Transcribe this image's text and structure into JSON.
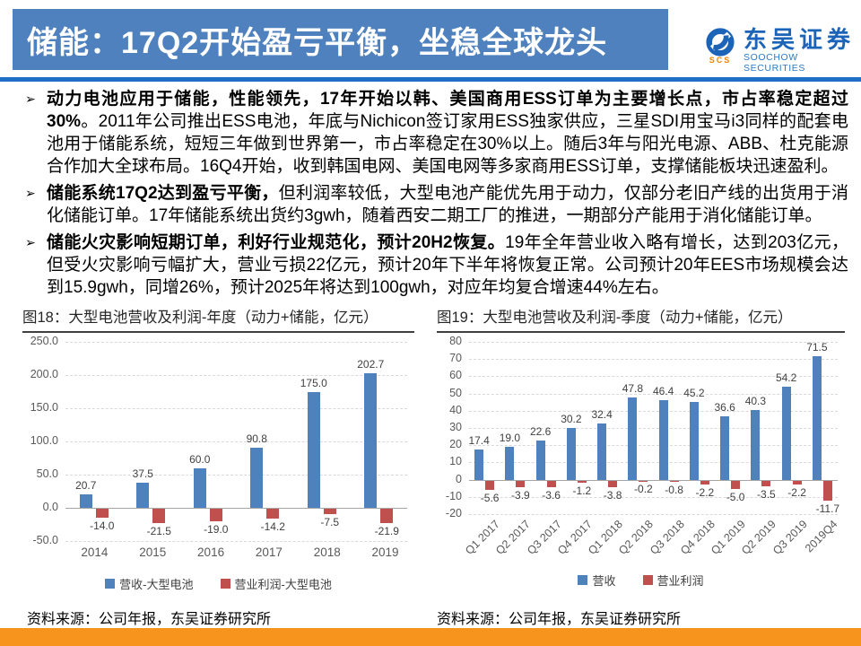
{
  "header": {
    "title": "储能：17Q2开始盈亏平衡，坐稳全球龙头",
    "logo": {
      "name_cn": "东吴证券",
      "name_en": "SOOCHOW SECURITIES",
      "abbr": "SCS"
    }
  },
  "bullets": [
    {
      "marker": "➢",
      "bold": "动力电池应用于储能，性能领先，17年开始以韩、美国商用ESS订单为主要增长点，市占率稳定超过30%",
      "rest": "。2011年公司推出ESS电池，年底与Nichicon签订家用ESS独家供应，三星SDI用宝马i3同样的配套电池用于储能系统，短短三年做到世界第一，市占率稳定在30%以上。随后3年与阳光电源、ABB、杜克能源合作加大全球布局。16Q4开始，收到韩国电网、美国电网等多家商用ESS订单，支撑储能板块迅速盈利。"
    },
    {
      "marker": "➢",
      "bold": "储能系统17Q2达到盈亏平衡，",
      "rest": "但利润率较低，大型电池产能优先用于动力，仅部分老旧产线的出货用于消化储能订单。17年储能系统出货约3gwh，随着西安二期工厂的推进，一期部分产能用于消化储能订单。"
    },
    {
      "marker": "➢",
      "bold": "储能火灾影响短期订单，利好行业规范化，预计20H2恢复。",
      "rest": "19年全年营业收入略有增长，达到203亿元，但受火灾影响亏幅扩大，营业亏损22亿元，预计20年下半年将恢复正常。公司预计20年EES市场规模会达到15.9gwh，同增26%，预计2025年将达到100gwh，对应年均复合增速44%左右。"
    }
  ],
  "figures": [
    {
      "title": "图18：大型电池营收及利润-年度（动力+储能，亿元）",
      "source": "资料来源：公司年报，东吴证券研究所"
    },
    {
      "title": "图19：大型电池营收及利润-季度（动力+储能，亿元）",
      "source": "资料来源：公司年报，东吴证券研究所"
    }
  ],
  "chart_data": [
    {
      "type": "bar",
      "title": "图18：大型电池营收及利润-年度（动力+储能，亿元）",
      "categories": [
        "2014",
        "2015",
        "2016",
        "2017",
        "2018",
        "2019"
      ],
      "series": [
        {
          "name": "营收-大型电池",
          "color": "#4F81BD",
          "values": [
            20.7,
            37.5,
            60.0,
            90.8,
            175.0,
            202.7
          ]
        },
        {
          "name": "营业利润-大型电池",
          "color": "#C0504D",
          "values": [
            -14.0,
            -21.5,
            -19.0,
            -14.2,
            -7.5,
            -21.9
          ]
        }
      ],
      "ylim": [
        -50,
        250
      ],
      "ytick_step": 50,
      "ytick_decimals": 1,
      "label_decimals": 1,
      "grid": true,
      "legend_position": "bottom",
      "rotate_xlabels": false
    },
    {
      "type": "bar",
      "title": "图19：大型电池营收及利润-季度（动力+储能，亿元）",
      "categories": [
        "Q1 2017",
        "Q2 2017",
        "Q3 2017",
        "Q4 2017",
        "Q1 2018",
        "Q2 2018",
        "Q3 2018",
        "Q4 2018",
        "Q1 2019",
        "Q2 2019",
        "Q3 2019",
        "2019Q4"
      ],
      "series": [
        {
          "name": "营收",
          "color": "#4F81BD",
          "values": [
            17.4,
            19.0,
            22.6,
            30.2,
            32.4,
            47.8,
            46.4,
            45.2,
            36.6,
            40.3,
            54.2,
            71.5
          ]
        },
        {
          "name": "营业利润",
          "color": "#C0504D",
          "values": [
            -5.6,
            -3.9,
            -3.6,
            -1.2,
            -3.8,
            -0.2,
            -0.8,
            -2.2,
            -5.0,
            -3.5,
            -2.2,
            -11.7
          ]
        }
      ],
      "ylim": [
        -20,
        80
      ],
      "ytick_step": 10,
      "ytick_decimals": 0,
      "label_decimals": 1,
      "grid": true,
      "legend_position": "bottom",
      "rotate_xlabels": true
    }
  ],
  "colors": {
    "banner_blue": "#4E81BD",
    "rule_blue": "#1F6EC8",
    "footer_orange": "#F7941E",
    "revenue_blue": "#4F81BD",
    "profit_red": "#C0504D",
    "logo_blue": "#1B64B8",
    "logo_orange": "#F08300"
  }
}
